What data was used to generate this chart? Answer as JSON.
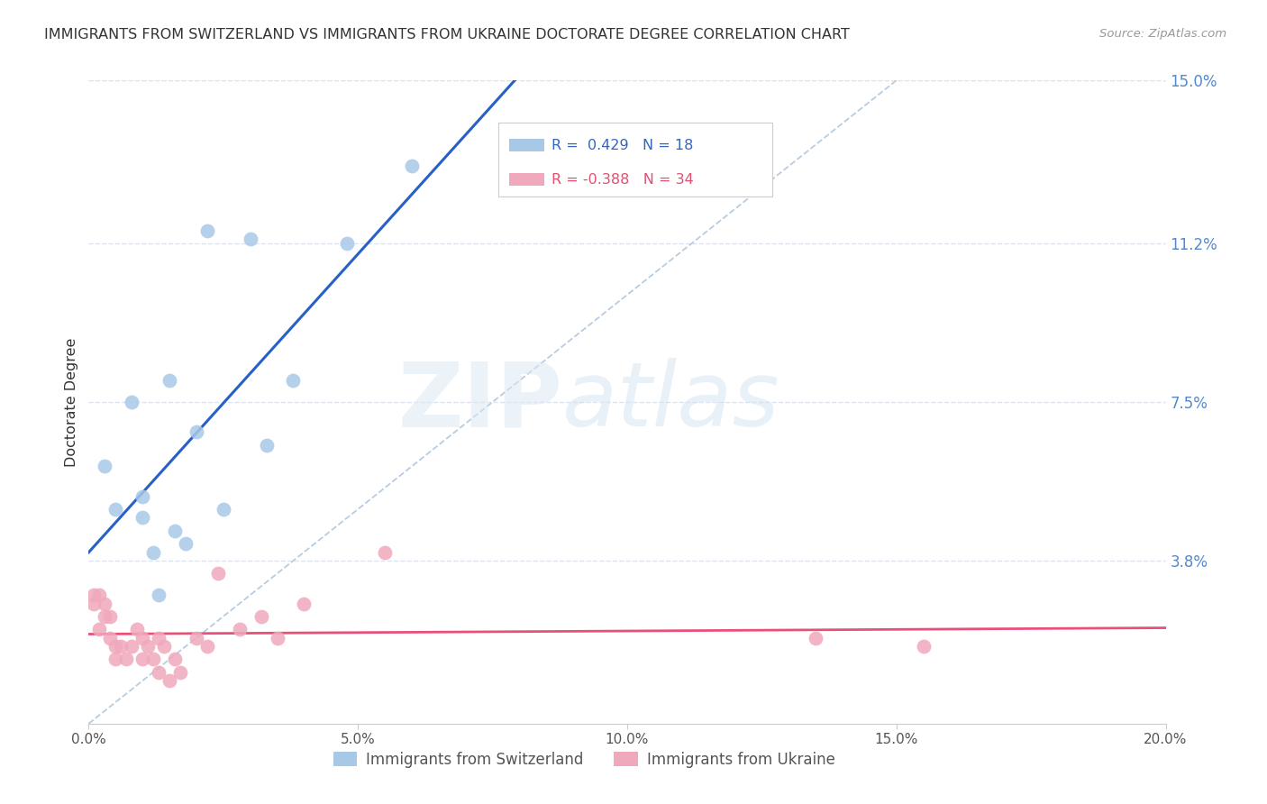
{
  "title": "IMMIGRANTS FROM SWITZERLAND VS IMMIGRANTS FROM UKRAINE DOCTORATE DEGREE CORRELATION CHART",
  "source": "Source: ZipAtlas.com",
  "ylabel": "Doctorate Degree",
  "xlim": [
    0.0,
    0.2
  ],
  "ylim": [
    0.0,
    0.15
  ],
  "xtick_labels": [
    "0.0%",
    "5.0%",
    "10.0%",
    "15.0%",
    "20.0%"
  ],
  "xtick_values": [
    0.0,
    0.05,
    0.1,
    0.15,
    0.2
  ],
  "ytick_right_labels": [
    "15.0%",
    "11.2%",
    "7.5%",
    "3.8%"
  ],
  "ytick_right_values": [
    0.15,
    0.112,
    0.075,
    0.038
  ],
  "r_switzerland": 0.429,
  "n_switzerland": 18,
  "r_ukraine": -0.388,
  "n_ukraine": 34,
  "color_switzerland": "#a8c8e8",
  "color_ukraine": "#f0a8bc",
  "color_switzerland_line": "#2860c8",
  "color_ukraine_line": "#e8507a",
  "color_diagonal": "#b8cce0",
  "background_color": "#ffffff",
  "grid_color": "#dde4ee",
  "switzerland_x": [
    0.003,
    0.005,
    0.008,
    0.01,
    0.01,
    0.012,
    0.013,
    0.015,
    0.016,
    0.018,
    0.02,
    0.022,
    0.025,
    0.03,
    0.033,
    0.038,
    0.048,
    0.06
  ],
  "switzerland_y": [
    0.06,
    0.05,
    0.075,
    0.048,
    0.053,
    0.04,
    0.03,
    0.08,
    0.045,
    0.042,
    0.068,
    0.115,
    0.05,
    0.113,
    0.065,
    0.08,
    0.112,
    0.13
  ],
  "ukraine_x": [
    0.001,
    0.001,
    0.002,
    0.002,
    0.003,
    0.003,
    0.004,
    0.004,
    0.005,
    0.005,
    0.006,
    0.007,
    0.008,
    0.009,
    0.01,
    0.01,
    0.011,
    0.012,
    0.013,
    0.013,
    0.014,
    0.015,
    0.016,
    0.017,
    0.02,
    0.022,
    0.024,
    0.028,
    0.032,
    0.035,
    0.04,
    0.055,
    0.135,
    0.155
  ],
  "ukraine_y": [
    0.03,
    0.028,
    0.03,
    0.022,
    0.028,
    0.025,
    0.025,
    0.02,
    0.018,
    0.015,
    0.018,
    0.015,
    0.018,
    0.022,
    0.02,
    0.015,
    0.018,
    0.015,
    0.02,
    0.012,
    0.018,
    0.01,
    0.015,
    0.012,
    0.02,
    0.018,
    0.035,
    0.022,
    0.025,
    0.02,
    0.028,
    0.04,
    0.02,
    0.018
  ],
  "legend_label_switzerland": "Immigrants from Switzerland",
  "legend_label_ukraine": "Immigrants from Ukraine"
}
